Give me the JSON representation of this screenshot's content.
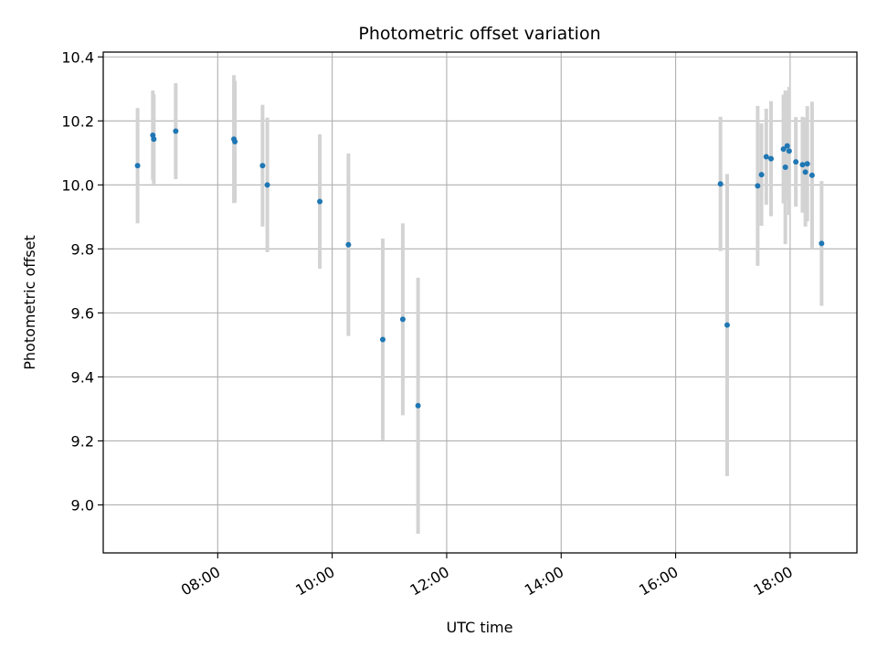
{
  "chart_data": {
    "type": "scatter",
    "title": "Photometric offset variation",
    "xlabel": "UTC time",
    "ylabel": "Photometric offset",
    "x_axis_type": "time",
    "xlim": [
      "06:00",
      "19:10"
    ],
    "ylim": [
      8.85,
      10.415
    ],
    "x_ticks": [
      "08:00",
      "10:00",
      "12:00",
      "14:00",
      "16:00",
      "18:00"
    ],
    "y_ticks": [
      9.0,
      9.2,
      9.4,
      9.6,
      9.8,
      10.0,
      10.2,
      10.4
    ],
    "grid": true,
    "legend": "none",
    "colors": {
      "point": "#1f77b4",
      "errorbar": "#d3d3d3",
      "grid": "#b0b0b0"
    },
    "series": [
      {
        "points": [
          {
            "x": "06:36",
            "y": 10.06,
            "err": 0.18
          },
          {
            "x": "06:52",
            "y": 10.155,
            "err": 0.14
          },
          {
            "x": "06:53",
            "y": 10.143,
            "err": 0.14
          },
          {
            "x": "07:16",
            "y": 10.168,
            "err": 0.15
          },
          {
            "x": "08:17",
            "y": 10.143,
            "err": 0.2
          },
          {
            "x": "08:18",
            "y": 10.135,
            "err": 0.19
          },
          {
            "x": "08:47",
            "y": 10.06,
            "err": 0.19
          },
          {
            "x": "08:52",
            "y": 10.0,
            "err": 0.21
          },
          {
            "x": "09:47",
            "y": 9.948,
            "err": 0.21
          },
          {
            "x": "10:17",
            "y": 9.813,
            "err": 0.285
          },
          {
            "x": "10:53",
            "y": 9.517,
            "err": 0.315
          },
          {
            "x": "11:14",
            "y": 9.58,
            "err": 0.3
          },
          {
            "x": "11:30",
            "y": 9.31,
            "err": 0.4
          },
          {
            "x": "16:47",
            "y": 10.003,
            "err": 0.21
          },
          {
            "x": "16:54",
            "y": 9.562,
            "err": 0.472
          },
          {
            "x": "17:26",
            "y": 9.997,
            "err": 0.25
          },
          {
            "x": "17:30",
            "y": 10.032,
            "err": 0.16
          },
          {
            "x": "17:35",
            "y": 10.088,
            "err": 0.15
          },
          {
            "x": "17:40",
            "y": 10.082,
            "err": 0.18
          },
          {
            "x": "17:53",
            "y": 10.112,
            "err": 0.17
          },
          {
            "x": "17:55",
            "y": 10.055,
            "err": 0.24
          },
          {
            "x": "17:57",
            "y": 10.122,
            "err": 0.17
          },
          {
            "x": "17:59",
            "y": 10.106,
            "err": 0.2
          },
          {
            "x": "18:06",
            "y": 10.072,
            "err": 0.14
          },
          {
            "x": "18:13",
            "y": 10.063,
            "err": 0.15
          },
          {
            "x": "18:16",
            "y": 10.04,
            "err": 0.17
          },
          {
            "x": "18:18",
            "y": 10.066,
            "err": 0.18
          },
          {
            "x": "18:23",
            "y": 10.03,
            "err": 0.23
          },
          {
            "x": "18:33",
            "y": 9.817,
            "err": 0.195
          }
        ]
      }
    ]
  }
}
